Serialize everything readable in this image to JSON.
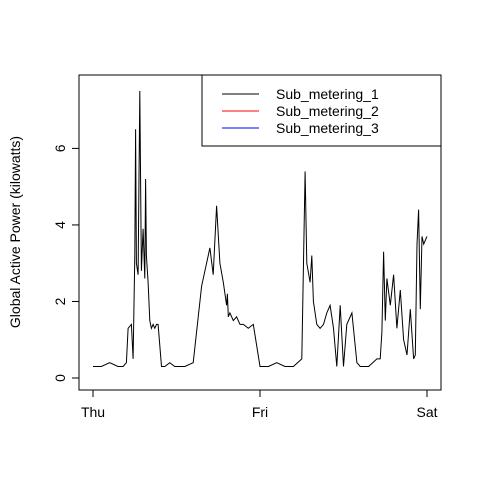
{
  "chart_data": {
    "type": "line",
    "title": "",
    "xlabel": "",
    "ylabel": "Global Active Power (kilowatts)",
    "xlim": [
      0,
      2
    ],
    "ylim": [
      0,
      7.5
    ],
    "x_ticks": [
      {
        "value": 0,
        "label": "Thu"
      },
      {
        "value": 1,
        "label": "Fri"
      },
      {
        "value": 2,
        "label": "Sat"
      }
    ],
    "y_ticks": [
      0,
      2,
      4,
      6
    ],
    "grid": false,
    "legend": {
      "placement": "top-right",
      "entries": [
        {
          "label": "Sub_metering_1",
          "color": "#000000"
        },
        {
          "label": "Sub_metering_2",
          "color": "#ff0000"
        },
        {
          "label": "Sub_metering_3",
          "color": "#0000ff"
        }
      ]
    },
    "series": [
      {
        "color": "#000000",
        "x": [
          0.0,
          0.05,
          0.1,
          0.15,
          0.18,
          0.2,
          0.21,
          0.23,
          0.24,
          0.25,
          0.255,
          0.26,
          0.27,
          0.28,
          0.29,
          0.3,
          0.31,
          0.315,
          0.32,
          0.33,
          0.34,
          0.35,
          0.36,
          0.37,
          0.38,
          0.39,
          0.41,
          0.43,
          0.46,
          0.49,
          0.51,
          0.55,
          0.6,
          0.65,
          0.7,
          0.72,
          0.74,
          0.76,
          0.78,
          0.8,
          0.805,
          0.81,
          0.82,
          0.84,
          0.86,
          0.88,
          0.9,
          0.93,
          0.96,
          1.0,
          1.01,
          1.05,
          1.1,
          1.15,
          1.2,
          1.25,
          1.27,
          1.28,
          1.3,
          1.31,
          1.32,
          1.34,
          1.36,
          1.38,
          1.4,
          1.42,
          1.44,
          1.46,
          1.48,
          1.5,
          1.52,
          1.55,
          1.58,
          1.6,
          1.65,
          1.7,
          1.72,
          1.73,
          1.74,
          1.75,
          1.76,
          1.78,
          1.8,
          1.82,
          1.84,
          1.86,
          1.88,
          1.9,
          1.92,
          1.93,
          1.94,
          1.95,
          1.96,
          1.97,
          1.98,
          2.0
        ],
        "values": [
          0.3,
          0.3,
          0.4,
          0.3,
          0.3,
          0.4,
          1.3,
          1.4,
          0.5,
          3.2,
          6.5,
          3.0,
          2.7,
          7.5,
          2.8,
          3.9,
          2.6,
          5.2,
          3.2,
          2.5,
          1.5,
          1.3,
          1.4,
          1.3,
          1.4,
          1.4,
          0.3,
          0.3,
          0.4,
          0.3,
          0.3,
          0.3,
          0.4,
          2.4,
          3.4,
          2.7,
          4.5,
          3.0,
          2.5,
          1.9,
          2.2,
          1.6,
          1.7,
          1.5,
          1.6,
          1.4,
          1.4,
          1.3,
          1.4,
          0.3,
          0.3,
          0.3,
          0.4,
          0.3,
          0.3,
          0.5,
          5.4,
          3.0,
          2.5,
          3.2,
          2.0,
          1.4,
          1.3,
          1.4,
          1.7,
          1.9,
          1.3,
          0.3,
          1.9,
          0.3,
          1.4,
          1.7,
          0.4,
          0.3,
          0.3,
          0.5,
          0.5,
          1.2,
          3.3,
          1.5,
          2.6,
          1.9,
          2.7,
          1.3,
          2.3,
          1.0,
          0.6,
          1.8,
          0.5,
          0.6,
          3.5,
          4.4,
          1.8,
          3.7,
          3.5,
          3.7
        ]
      }
    ]
  }
}
